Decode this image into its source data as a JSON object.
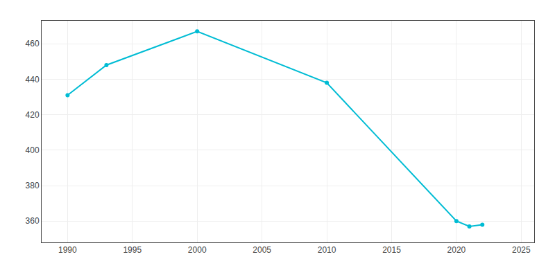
{
  "chart_data": {
    "type": "line",
    "x": [
      1990,
      1993,
      2000,
      2010,
      2020,
      2021,
      2022
    ],
    "values": [
      431,
      448,
      467,
      438,
      360,
      357,
      358
    ],
    "color": "#00BCD4",
    "marker": "circle",
    "xlim": [
      1988,
      2026
    ],
    "ylim": [
      348,
      473
    ],
    "xticks": [
      1990,
      1995,
      2000,
      2005,
      2010,
      2015,
      2020,
      2025
    ],
    "yticks": [
      360,
      380,
      400,
      420,
      440,
      460
    ],
    "grid": true
  }
}
